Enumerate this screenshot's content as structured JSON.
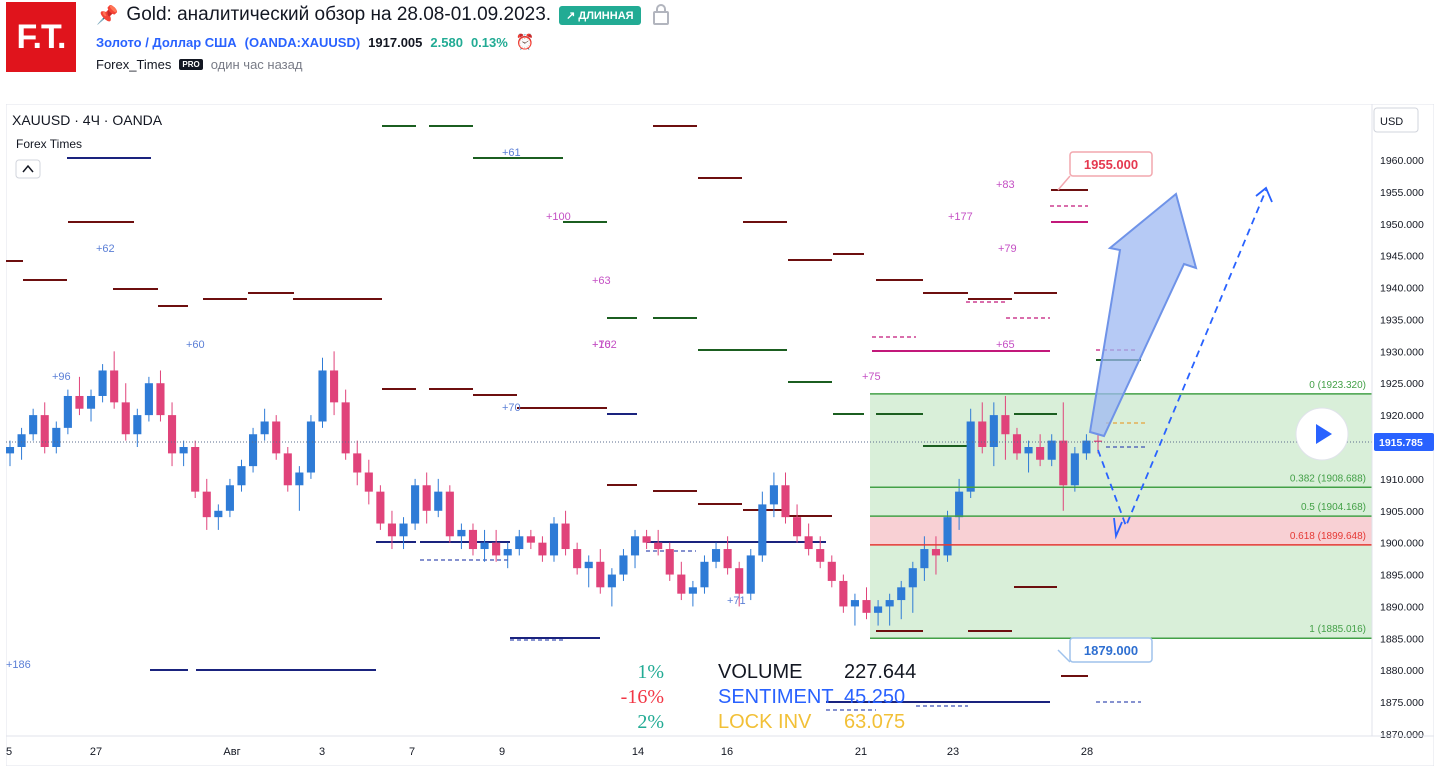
{
  "header": {
    "logo_text": "F.T.",
    "title": "Gold: аналитический обзор на 28.08-01.09.2023.",
    "badge": "↗ ДЛИННАЯ",
    "symbol": "Золото / Доллар США",
    "ticker": "(OANDA:XAUUSD)",
    "price": "1917.005",
    "change": "2.580",
    "change_pct": "0.13%",
    "author": "Forex_Times",
    "pro": "PRO",
    "posted": "один час назад"
  },
  "chart_data": {
    "type": "candlestick",
    "symbol_label": "XAUUSD · 4Ч · OANDA",
    "source_label": "Forex Times",
    "currency": "USD",
    "ylim": [
      1868,
      1965
    ],
    "y_ticks": [
      "1960.000",
      "1955.000",
      "1950.000",
      "1945.000",
      "1940.000",
      "1935.000",
      "1930.000",
      "1925.000",
      "1920.000",
      "1915.000",
      "1910.000",
      "1905.000",
      "1900.000",
      "1895.000",
      "1890.000",
      "1885.000",
      "1880.000",
      "1875.000",
      "1870.000"
    ],
    "x_ticks": [
      "25",
      "27",
      "Авг",
      "3",
      "7",
      "9",
      "14",
      "16",
      "21",
      "23",
      "28"
    ],
    "last_price": "1915.785",
    "target_up": "1955.000",
    "target_down": "1879.000",
    "fib_levels": [
      {
        "label": "0 (1923.320)",
        "value": 1923.32
      },
      {
        "label": "0.382 (1908.688)",
        "value": 1908.688
      },
      {
        "label": "0.5 (1904.168)",
        "value": 1904.168
      },
      {
        "label": "0.618 (1899.648)",
        "value": 1899.648
      },
      {
        "label": "1 (1885.016)",
        "value": 1885.016
      }
    ],
    "volume_annotations": [
      {
        "pct": "1%",
        "pct_color": "#22ab94",
        "name": "VOLUME",
        "value": "227.644",
        "color": "#131722"
      },
      {
        "pct": "-16%",
        "pct_color": "#f23645",
        "name": "SENTIMENT",
        "value": "45.250",
        "color": "#2962ff"
      },
      {
        "pct": "2%",
        "pct_color": "#22ab94",
        "name": "LOCK INV",
        "value": "63.075",
        "color": "#f2c037"
      }
    ],
    "level_labels": [
      "+61",
      "+100",
      "+63",
      "+102",
      "+70",
      "+71",
      "+75",
      "+177",
      "+83",
      "+79",
      "+65",
      "+62",
      "+60",
      "+96",
      "+186",
      "+76"
    ],
    "candles": [
      [
        1914,
        1916,
        1912,
        1915
      ],
      [
        1915,
        1918,
        1913,
        1917
      ],
      [
        1917,
        1921,
        1916,
        1920
      ],
      [
        1920,
        1922,
        1914,
        1915
      ],
      [
        1915,
        1919,
        1914,
        1918
      ],
      [
        1918,
        1924,
        1917,
        1923
      ],
      [
        1923,
        1926,
        1920,
        1921
      ],
      [
        1921,
        1924,
        1919,
        1923
      ],
      [
        1923,
        1928,
        1922,
        1927
      ],
      [
        1927,
        1930,
        1921,
        1922
      ],
      [
        1922,
        1925,
        1916,
        1917
      ],
      [
        1917,
        1921,
        1915,
        1920
      ],
      [
        1920,
        1926,
        1919,
        1925
      ],
      [
        1925,
        1927,
        1919,
        1920
      ],
      [
        1920,
        1922,
        1912,
        1914
      ],
      [
        1914,
        1916,
        1912,
        1915
      ],
      [
        1915,
        1916,
        1907,
        1908
      ],
      [
        1908,
        1910,
        1902,
        1904
      ],
      [
        1904,
        1906,
        1902,
        1905
      ],
      [
        1905,
        1910,
        1904,
        1909
      ],
      [
        1909,
        1913,
        1908,
        1912
      ],
      [
        1912,
        1918,
        1911,
        1917
      ],
      [
        1917,
        1921,
        1916,
        1919
      ],
      [
        1919,
        1920,
        1913,
        1914
      ],
      [
        1914,
        1915,
        1908,
        1909
      ],
      [
        1909,
        1912,
        1905,
        1911
      ],
      [
        1911,
        1920,
        1910,
        1919
      ],
      [
        1919,
        1929,
        1918,
        1927
      ],
      [
        1927,
        1930,
        1920,
        1922
      ],
      [
        1922,
        1924,
        1913,
        1914
      ],
      [
        1914,
        1916,
        1909,
        1911
      ],
      [
        1911,
        1913,
        1906,
        1908
      ],
      [
        1908,
        1909,
        1902,
        1903
      ],
      [
        1903,
        1905,
        1899,
        1901
      ],
      [
        1901,
        1904,
        1899,
        1903
      ],
      [
        1903,
        1910,
        1902,
        1909
      ],
      [
        1909,
        1911,
        1903,
        1905
      ],
      [
        1905,
        1910,
        1904,
        1908
      ],
      [
        1908,
        1909,
        1900,
        1901
      ],
      [
        1901,
        1903,
        1899,
        1902
      ],
      [
        1902,
        1903,
        1898,
        1899
      ],
      [
        1899,
        1902,
        1897,
        1900
      ],
      [
        1900,
        1902,
        1897,
        1898
      ],
      [
        1898,
        1900,
        1896,
        1899
      ],
      [
        1899,
        1902,
        1898,
        1901
      ],
      [
        1901,
        1902,
        1899,
        1900
      ],
      [
        1900,
        1901,
        1897,
        1898
      ],
      [
        1898,
        1904,
        1897,
        1903
      ],
      [
        1903,
        1905,
        1898,
        1899
      ],
      [
        1899,
        1900,
        1895,
        1896
      ],
      [
        1896,
        1898,
        1893,
        1897
      ],
      [
        1897,
        1899,
        1892,
        1893
      ],
      [
        1893,
        1896,
        1890,
        1895
      ],
      [
        1895,
        1899,
        1894,
        1898
      ],
      [
        1898,
        1902,
        1896,
        1901
      ],
      [
        1901,
        1902,
        1899,
        1900
      ],
      [
        1900,
        1902,
        1898,
        1899
      ],
      [
        1899,
        1900,
        1894,
        1895
      ],
      [
        1895,
        1897,
        1891,
        1892
      ],
      [
        1892,
        1894,
        1890,
        1893
      ],
      [
        1893,
        1898,
        1892,
        1897
      ],
      [
        1897,
        1900,
        1896,
        1899
      ],
      [
        1899,
        1901,
        1895,
        1896
      ],
      [
        1896,
        1897,
        1890,
        1892
      ],
      [
        1892,
        1899,
        1891,
        1898
      ],
      [
        1898,
        1908,
        1897,
        1906
      ],
      [
        1906,
        1911,
        1904,
        1909
      ],
      [
        1909,
        1911,
        1903,
        1904
      ],
      [
        1904,
        1906,
        1900,
        1901
      ],
      [
        1901,
        1903,
        1898,
        1899
      ],
      [
        1899,
        1901,
        1896,
        1897
      ],
      [
        1897,
        1898,
        1893,
        1894
      ],
      [
        1894,
        1895,
        1889,
        1890
      ],
      [
        1890,
        1892,
        1887,
        1891
      ],
      [
        1891,
        1893,
        1888,
        1889
      ],
      [
        1889,
        1891,
        1887,
        1890
      ],
      [
        1890,
        1892,
        1887,
        1891
      ],
      [
        1891,
        1894,
        1888,
        1893
      ],
      [
        1893,
        1897,
        1889,
        1896
      ],
      [
        1896,
        1901,
        1894,
        1899
      ],
      [
        1899,
        1901,
        1895,
        1898
      ],
      [
        1898,
        1905,
        1897,
        1904
      ],
      [
        1904,
        1910,
        1902,
        1908
      ],
      [
        1908,
        1921,
        1907,
        1919
      ],
      [
        1919,
        1922,
        1914,
        1915
      ],
      [
        1915,
        1922,
        1912,
        1920
      ],
      [
        1920,
        1923,
        1913,
        1917
      ],
      [
        1917,
        1918,
        1913,
        1914
      ],
      [
        1914,
        1916,
        1911,
        1915
      ],
      [
        1915,
        1917,
        1912,
        1913
      ],
      [
        1913,
        1917,
        1912,
        1916
      ],
      [
        1916,
        1922,
        1905,
        1909
      ],
      [
        1909,
        1915,
        1908,
        1914
      ],
      [
        1914,
        1917,
        1913,
        1916
      ],
      [
        1916,
        1917,
        1914,
        1915.8
      ]
    ]
  }
}
